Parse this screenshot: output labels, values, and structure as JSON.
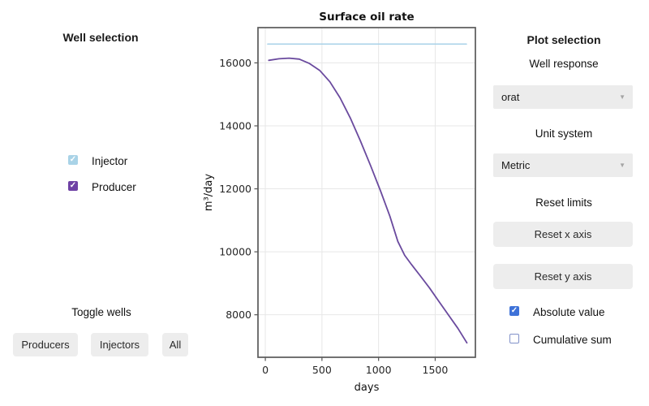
{
  "left_panel": {
    "title": "Well selection",
    "wells": [
      {
        "label": "Injector",
        "checked": true,
        "color": "#a9d3e7"
      },
      {
        "label": "Producer",
        "checked": true,
        "color": "#6f42a5"
      }
    ],
    "toggle_label": "Toggle wells",
    "buttons": [
      {
        "label": "Producers"
      },
      {
        "label": "Injectors"
      },
      {
        "label": "All"
      }
    ]
  },
  "right_panel": {
    "title": "Plot selection",
    "well_response": {
      "label": "Well response",
      "value": "orat"
    },
    "unit_system": {
      "label": "Unit system",
      "value": "Metric"
    },
    "reset_limits_label": "Reset limits",
    "reset_x_label": "Reset x axis",
    "reset_y_label": "Reset y axis",
    "options": [
      {
        "label": "Absolute value",
        "checked": true
      },
      {
        "label": "Cumulative sum",
        "checked": false
      }
    ],
    "checkbox_checked_color": "#3e72d8",
    "checkbox_border_color": "#8191c9"
  },
  "icons": {
    "checkmark": "✓",
    "dropdown_arrow": "▼"
  },
  "chart_data": {
    "type": "line",
    "title": "Surface oil rate",
    "xlabel": "days",
    "ylabel": "m³/day",
    "xlim": [
      -65,
      1855
    ],
    "ylim": [
      6650,
      17120
    ],
    "xticks": [
      0,
      500,
      1000,
      1500
    ],
    "yticks": [
      8000,
      10000,
      12000,
      14000,
      16000
    ],
    "grid": true,
    "series": [
      {
        "name": "Injector",
        "color": "#a8d2e8",
        "points": [
          [
            20,
            16600
          ],
          [
            1776,
            16600
          ]
        ]
      },
      {
        "name": "Producer",
        "color": "#6a4a9e",
        "points": [
          [
            30,
            16080
          ],
          [
            120,
            16130
          ],
          [
            210,
            16150
          ],
          [
            300,
            16120
          ],
          [
            390,
            15980
          ],
          [
            480,
            15760
          ],
          [
            570,
            15400
          ],
          [
            660,
            14890
          ],
          [
            750,
            14250
          ],
          [
            840,
            13520
          ],
          [
            930,
            12730
          ],
          [
            1020,
            11910
          ],
          [
            1100,
            11130
          ],
          [
            1170,
            10330
          ],
          [
            1230,
            9890
          ],
          [
            1290,
            9600
          ],
          [
            1370,
            9230
          ],
          [
            1450,
            8850
          ],
          [
            1530,
            8440
          ],
          [
            1610,
            8030
          ],
          [
            1700,
            7570
          ],
          [
            1780,
            7110
          ]
        ]
      }
    ]
  }
}
